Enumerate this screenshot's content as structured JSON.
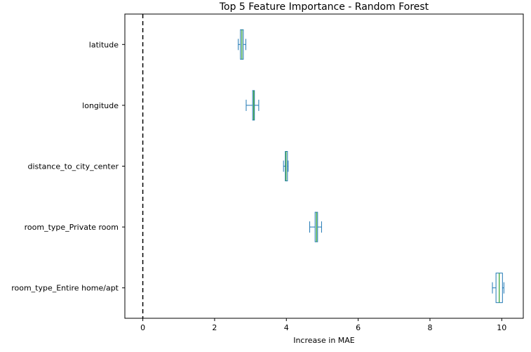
{
  "chart_data": {
    "type": "box",
    "orientation": "horizontal",
    "title": "Top 5 Feature Importance - Random Forest",
    "xlabel": "Increase in MAE",
    "ylabel": "",
    "xlim": [
      -0.5,
      10.6
    ],
    "xticks": [
      0,
      2,
      4,
      6,
      8,
      10
    ],
    "xtick_labels": [
      "0",
      "2",
      "4",
      "6",
      "8",
      "10"
    ],
    "reference_line": {
      "x": 0,
      "style": "dashed",
      "color": "#000000"
    },
    "grid": false,
    "categories": [
      "latitude",
      "longitude",
      "distance_to_city_center",
      "room_type_Private room",
      "room_type_Entire home/apt"
    ],
    "boxes": [
      {
        "label": "latitude",
        "whislo": 2.66,
        "q1": 2.72,
        "med": 2.76,
        "q3": 2.8,
        "whishi": 2.87
      },
      {
        "label": "longitude",
        "whislo": 2.88,
        "q1": 3.06,
        "med": 3.09,
        "q3": 3.11,
        "whishi": 3.23
      },
      {
        "label": "distance_to_city_center",
        "whislo": 3.92,
        "q1": 3.97,
        "med": 3.99,
        "q3": 4.03,
        "whishi": 4.05
      },
      {
        "label": "room_type_Private room",
        "whislo": 4.65,
        "q1": 4.8,
        "med": 4.84,
        "q3": 4.87,
        "whishi": 4.98
      },
      {
        "label": "room_type_Entire home/apt",
        "whislo": 9.74,
        "q1": 9.84,
        "med": 9.93,
        "q3": 10.02,
        "whishi": 10.06
      }
    ],
    "colors": {
      "box": "#1f77b4",
      "median": "#2ca02c",
      "reference": "#000000"
    }
  }
}
